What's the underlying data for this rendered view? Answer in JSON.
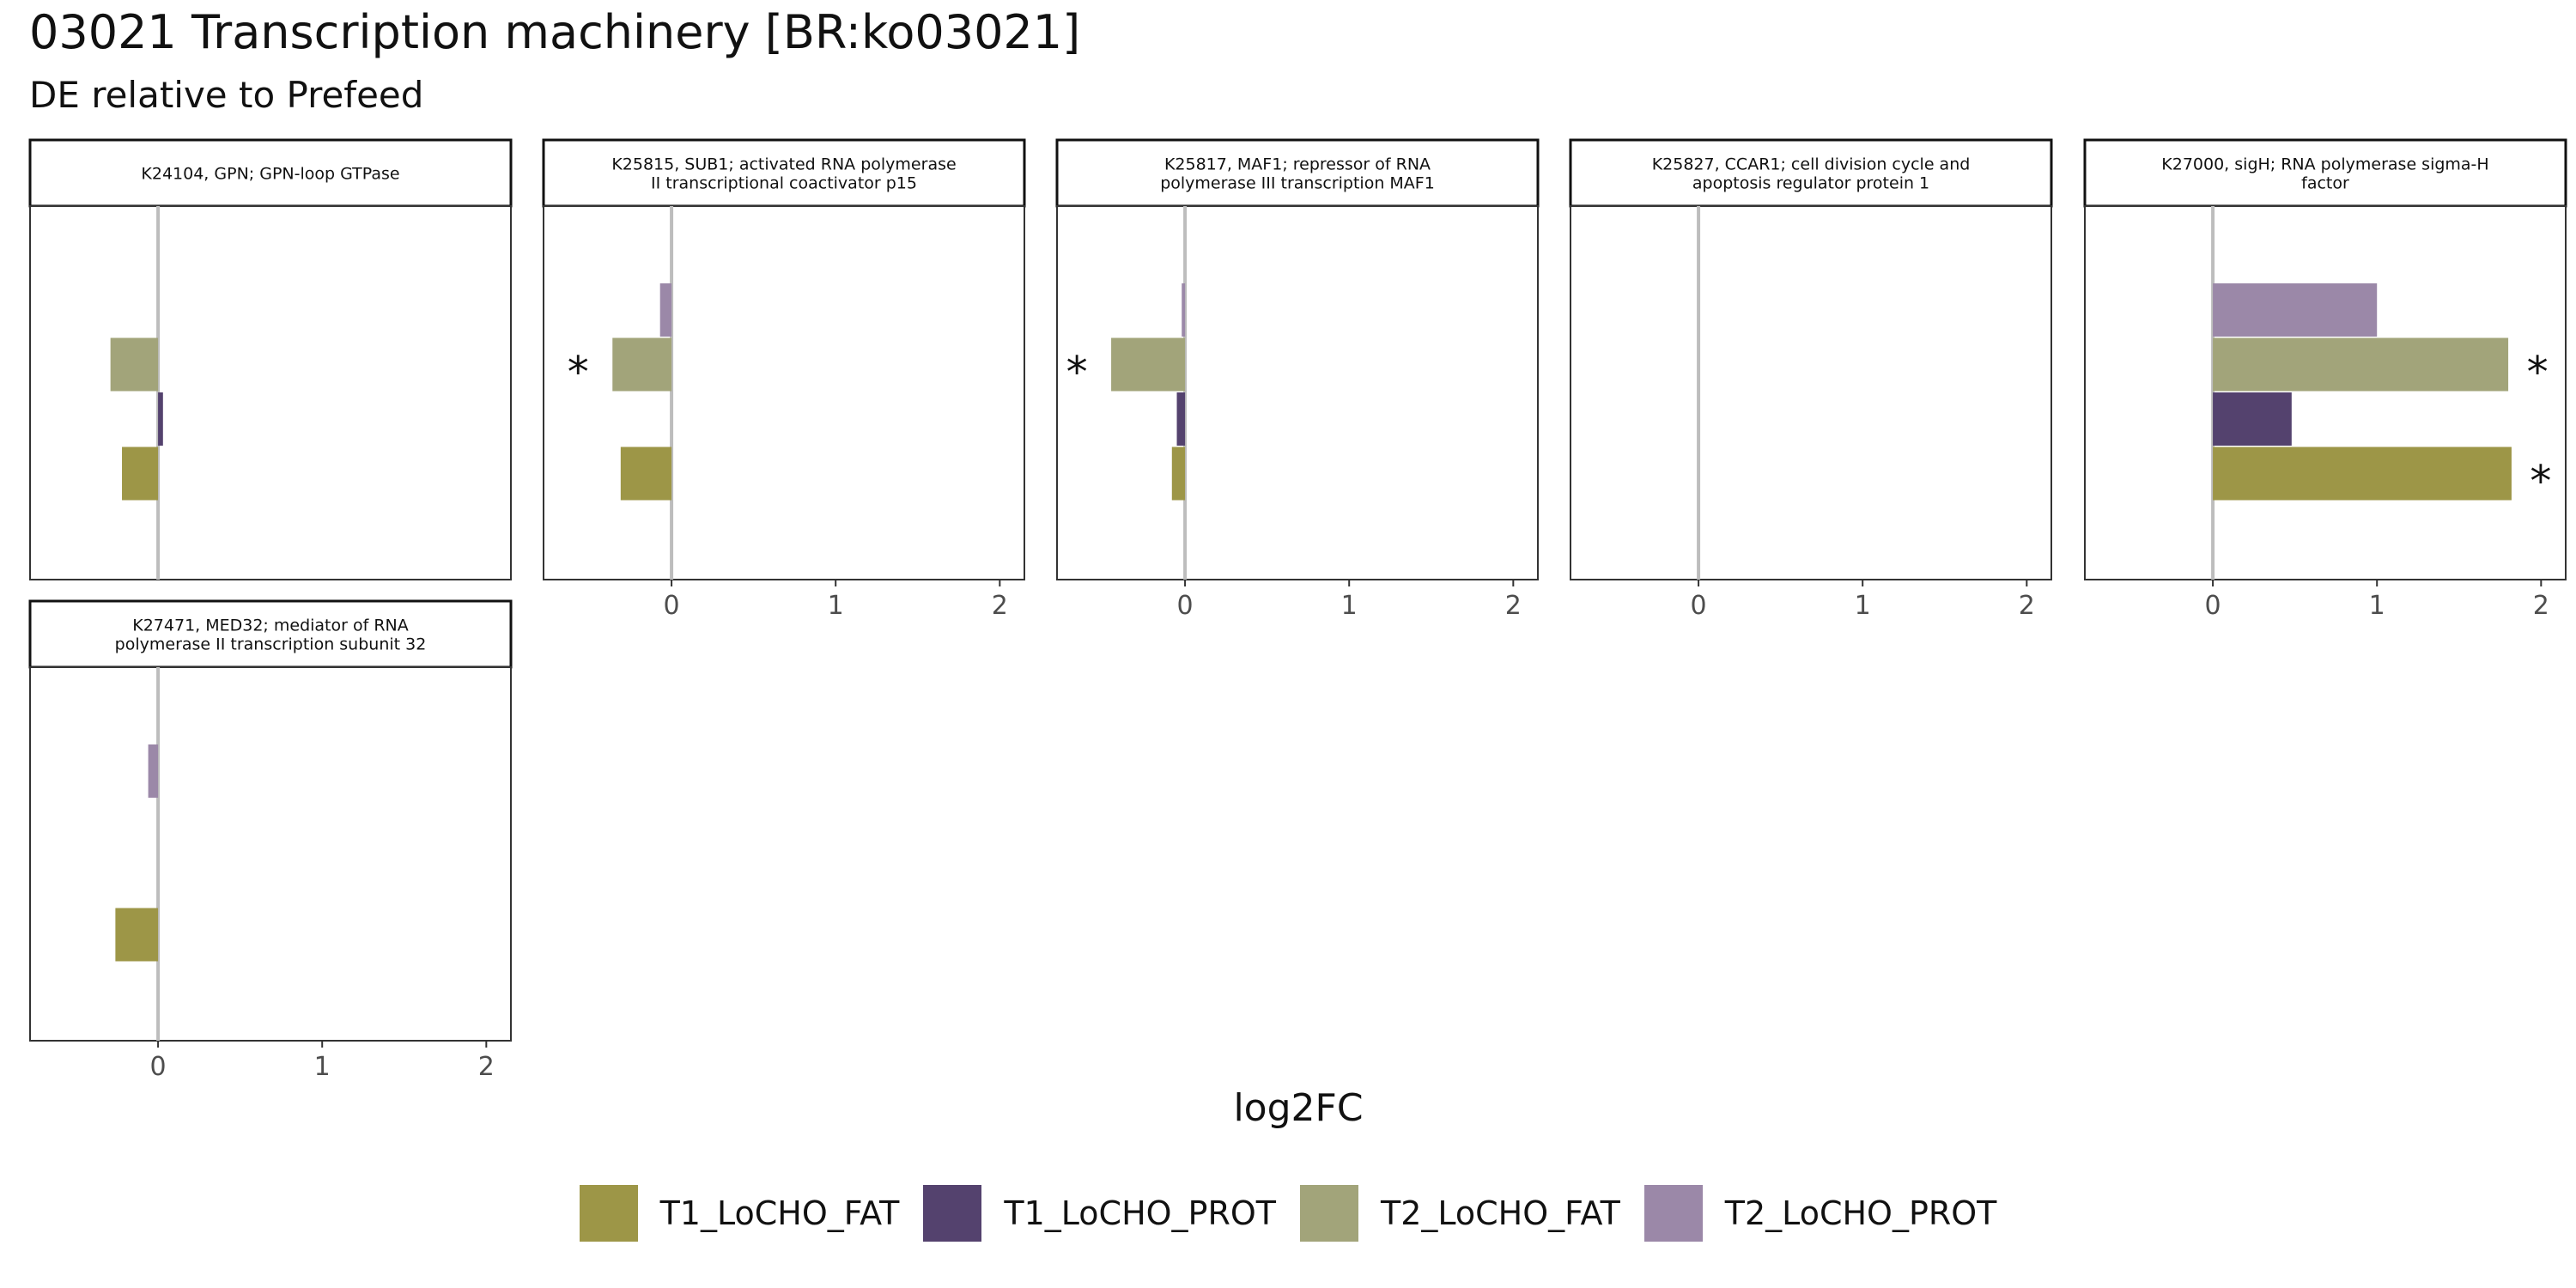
{
  "chart_data": {
    "type": "bar",
    "orientation": "horizontal",
    "title": "03021 Transcription machinery [BR:ko03021]",
    "subtitle": "DE relative to Prefeed",
    "xlabel": "log2FC",
    "xlim": [
      -0.78,
      2.15
    ],
    "x_ticks": [
      "0",
      "1",
      "2"
    ],
    "zero_line": true,
    "grid": false,
    "legend_position": "bottom",
    "series": [
      {
        "name": "T1_LoCHO_FAT",
        "color": "#9d9647"
      },
      {
        "name": "T1_LoCHO_PROT",
        "color": "#54426e"
      },
      {
        "name": "T2_LoCHO_FAT",
        "color": "#a2a47a"
      },
      {
        "name": "T2_LoCHO_PROT",
        "color": "#9b88a8"
      }
    ],
    "panels": [
      {
        "label": "K24104, GPN; GPN-loop GTPase",
        "values": {
          "T1_LoCHO_FAT": -0.22,
          "T1_LoCHO_PROT": 0.03,
          "T2_LoCHO_FAT": -0.29,
          "T2_LoCHO_PROT": null
        },
        "significant": [],
        "show_x_axis": false
      },
      {
        "label": "K25815, SUB1; activated RNA polymerase\nII transcriptional coactivator p15",
        "values": {
          "T1_LoCHO_FAT": -0.31,
          "T1_LoCHO_PROT": null,
          "T2_LoCHO_FAT": -0.36,
          "T2_LoCHO_PROT": -0.07
        },
        "significant": [
          "T2_LoCHO_FAT"
        ],
        "show_x_axis": true
      },
      {
        "label": "K25817, MAF1; repressor of RNA\npolymerase III transcription MAF1",
        "values": {
          "T1_LoCHO_FAT": -0.08,
          "T1_LoCHO_PROT": -0.05,
          "T2_LoCHO_FAT": -0.45,
          "T2_LoCHO_PROT": -0.02
        },
        "significant": [
          "T2_LoCHO_FAT"
        ],
        "show_x_axis": true
      },
      {
        "label": "K25827, CCAR1; cell division cycle and\napoptosis regulator protein 1",
        "values": {
          "T1_LoCHO_FAT": null,
          "T1_LoCHO_PROT": null,
          "T2_LoCHO_FAT": null,
          "T2_LoCHO_PROT": null
        },
        "significant": [],
        "show_x_axis": true
      },
      {
        "label": "K27000, sigH; RNA polymerase sigma-H\nfactor",
        "values": {
          "T1_LoCHO_FAT": 1.82,
          "T1_LoCHO_PROT": 0.48,
          "T2_LoCHO_FAT": 1.8,
          "T2_LoCHO_PROT": 1.0
        },
        "significant": [
          "T1_LoCHO_FAT",
          "T2_LoCHO_FAT"
        ],
        "show_x_axis": true
      },
      {
        "label": "K27471, MED32; mediator of RNA\npolymerase II transcription subunit 32",
        "values": {
          "T1_LoCHO_FAT": -0.26,
          "T1_LoCHO_PROT": null,
          "T2_LoCHO_FAT": null,
          "T2_LoCHO_PROT": -0.06
        },
        "significant": [],
        "show_x_axis": true
      }
    ],
    "significance_marker": "*"
  }
}
